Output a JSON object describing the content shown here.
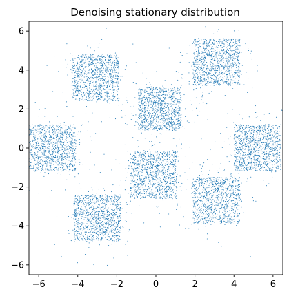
{
  "chart_data": {
    "type": "scatter",
    "title": "Denoising stationary distribution",
    "xlabel": "",
    "ylabel": "",
    "xlim": [
      -6.5,
      6.5
    ],
    "ylim": [
      -6.5,
      6.5
    ],
    "xticks": [
      -6,
      -4,
      -2,
      0,
      2,
      4,
      6
    ],
    "yticks": [
      -6,
      -4,
      -2,
      0,
      2,
      4,
      6
    ],
    "xtick_labels": [
      "−6",
      "−4",
      "−2",
      "0",
      "2",
      "4",
      "6"
    ],
    "ytick_labels": [
      "−6",
      "−4",
      "−2",
      "0",
      "2",
      "4",
      "6"
    ],
    "grid": false,
    "legend": "none",
    "marker_color": "#1f77b4",
    "clusters": [
      {
        "center": [
          -5.3,
          0.0
        ],
        "half_width": 1.2
      },
      {
        "center": [
          -3.1,
          3.6
        ],
        "half_width": 1.2
      },
      {
        "center": [
          0.2,
          2.0
        ],
        "half_width": 1.1
      },
      {
        "center": [
          3.1,
          4.4
        ],
        "half_width": 1.2
      },
      {
        "center": [
          5.2,
          0.0
        ],
        "half_width": 1.2
      },
      {
        "center": [
          -0.1,
          -1.4
        ],
        "half_width": 1.2
      },
      {
        "center": [
          3.1,
          -2.7
        ],
        "half_width": 1.2
      },
      {
        "center": [
          -3.0,
          -3.6
        ],
        "half_width": 1.2
      }
    ]
  }
}
